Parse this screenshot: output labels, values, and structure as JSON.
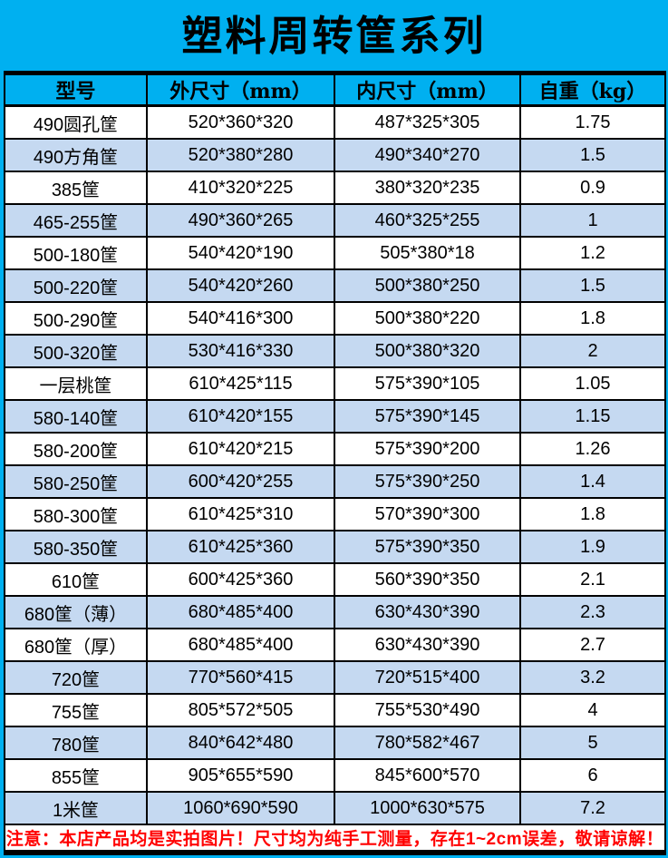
{
  "title": "塑料周转筐系列",
  "colors": {
    "banner": "#00B0F0",
    "row_alt": "#C5D9F1",
    "note_text": "#FF0000",
    "grid": "#000000"
  },
  "table": {
    "headers": [
      "型号",
      "外尺寸（mm）",
      "内尺寸（mm）",
      "自重（kg）"
    ],
    "rows": [
      [
        "490圆孔筐",
        "520*360*320",
        "487*325*305",
        "1.75"
      ],
      [
        "490方角筐",
        "520*380*280",
        "490*340*270",
        "1.5"
      ],
      [
        "385筐",
        "410*320*225",
        "380*320*235",
        "0.9"
      ],
      [
        "465-255筐",
        "490*360*265",
        "460*325*255",
        "1"
      ],
      [
        "500-180筐",
        "540*420*190",
        "505*380*18",
        "1.2"
      ],
      [
        "500-220筐",
        "540*420*260",
        "500*380*250",
        "1.5"
      ],
      [
        "500-290筐",
        "540*416*300",
        "500*380*220",
        "1.8"
      ],
      [
        "500-320筐",
        "530*416*330",
        "500*380*320",
        "2"
      ],
      [
        "一层桃筐",
        "610*425*115",
        "575*390*105",
        "1.05"
      ],
      [
        "580-140筐",
        "610*420*155",
        "575*390*145",
        "1.15"
      ],
      [
        "580-200筐",
        "610*420*215",
        "575*390*200",
        "1.26"
      ],
      [
        "580-250筐",
        "600*420*255",
        "575*390*250",
        "1.4"
      ],
      [
        "580-300筐",
        "610*425*310",
        "570*390*300",
        "1.8"
      ],
      [
        "580-350筐",
        "610*425*360",
        "575*390*350",
        "1.9"
      ],
      [
        "610筐",
        "600*425*360",
        "560*390*350",
        "2.1"
      ],
      [
        "680筐（薄）",
        "680*485*400",
        "630*430*390",
        "2.3"
      ],
      [
        "680筐（厚）",
        "680*485*400",
        "630*430*390",
        "2.7"
      ],
      [
        "720筐",
        "770*560*415",
        "720*515*400",
        "3.2"
      ],
      [
        "755筐",
        "805*572*505",
        "755*530*490",
        "4"
      ],
      [
        "780筐",
        "840*642*480",
        "780*582*467",
        "5"
      ],
      [
        "855筐",
        "905*655*590",
        "845*600*570",
        "6"
      ],
      [
        "1米筐",
        "1060*690*590",
        "1000*630*575",
        "7.2"
      ]
    ]
  },
  "note": "注意：本店产品均是实拍图片！尺寸均为纯手工测量，存在1~2cm误差，敬请谅解！"
}
